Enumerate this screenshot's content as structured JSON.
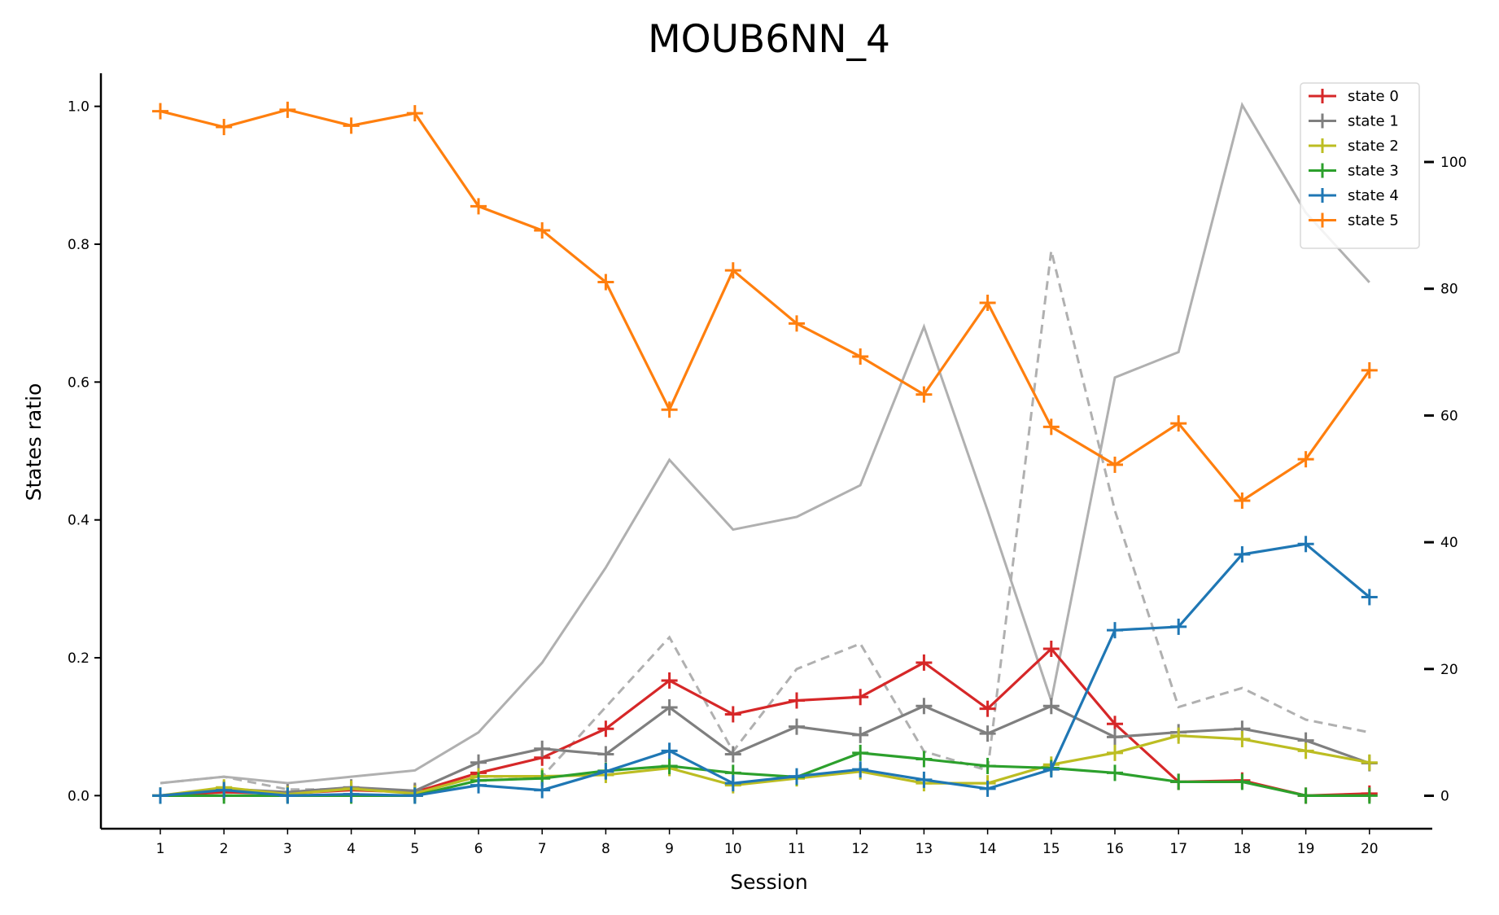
{
  "chart_data": {
    "type": "line",
    "title": "MOUB6NN_4",
    "xlabel": "Session",
    "ylabel": "States ratio",
    "x": [
      1,
      2,
      3,
      4,
      5,
      6,
      7,
      8,
      9,
      10,
      11,
      12,
      13,
      14,
      15,
      16,
      17,
      18,
      19,
      20
    ],
    "ylim": [
      -0.048,
      1.048
    ],
    "yticks": [
      0.0,
      0.2,
      0.4,
      0.6,
      0.8,
      1.0
    ],
    "y2lim": [
      -5.2,
      114
    ],
    "y2ticks": [
      0,
      20,
      40,
      60,
      80,
      100
    ],
    "legend_position": "top-right",
    "grid": false,
    "series": [
      {
        "name": "state 0",
        "color": "#d62728",
        "values": [
          0.0,
          0.005,
          0.003,
          0.008,
          0.005,
          0.033,
          0.055,
          0.097,
          0.167,
          0.118,
          0.138,
          0.143,
          0.193,
          0.126,
          0.213,
          0.104,
          0.02,
          0.022,
          0.0,
          0.003
        ]
      },
      {
        "name": "state 1",
        "color": "#7f7f7f",
        "values": [
          0.0,
          0.01,
          0.005,
          0.012,
          0.007,
          0.048,
          0.068,
          0.06,
          0.128,
          0.06,
          0.1,
          0.088,
          0.13,
          0.09,
          0.13,
          0.085,
          0.092,
          0.097,
          0.08,
          0.047
        ]
      },
      {
        "name": "state 2",
        "color": "#bcbd22",
        "values": [
          0.0,
          0.012,
          0.002,
          0.01,
          0.003,
          0.028,
          0.028,
          0.03,
          0.04,
          0.015,
          0.025,
          0.035,
          0.018,
          0.018,
          0.045,
          0.062,
          0.087,
          0.082,
          0.065,
          0.048
        ]
      },
      {
        "name": "state 3",
        "color": "#2ca02c",
        "values": [
          0.0,
          0.0,
          0.0,
          0.0,
          0.0,
          0.022,
          0.025,
          0.036,
          0.043,
          0.033,
          0.027,
          0.062,
          0.053,
          0.043,
          0.04,
          0.033,
          0.02,
          0.02,
          0.0,
          0.0
        ]
      },
      {
        "name": "state 4",
        "color": "#1f77b4",
        "values": [
          0.0,
          0.008,
          0.0,
          0.002,
          0.0,
          0.015,
          0.008,
          0.035,
          0.065,
          0.018,
          0.028,
          0.038,
          0.023,
          0.01,
          0.038,
          0.24,
          0.245,
          0.35,
          0.365,
          0.288
        ]
      },
      {
        "name": "state 5",
        "color": "#ff7f0e",
        "values": [
          0.993,
          0.97,
          0.995,
          0.972,
          0.99,
          0.855,
          0.82,
          0.745,
          0.56,
          0.762,
          0.685,
          0.637,
          0.582,
          0.715,
          0.535,
          0.48,
          0.54,
          0.428,
          0.488,
          0.617
        ]
      }
    ],
    "secondary_series": [
      {
        "style": "solid",
        "color": "#b0b0b0",
        "values": [
          2,
          3,
          2,
          3,
          4,
          10,
          21,
          36,
          53,
          42,
          44,
          49,
          74,
          45,
          15,
          66,
          70,
          109,
          92,
          81
        ]
      },
      {
        "style": "dashed",
        "color": "#b0b0b0",
        "values": [
          2,
          3,
          1,
          1,
          0.5,
          3,
          3,
          14,
          25,
          7,
          20,
          24,
          7,
          4,
          86,
          45,
          14,
          17,
          12,
          10
        ]
      }
    ]
  }
}
